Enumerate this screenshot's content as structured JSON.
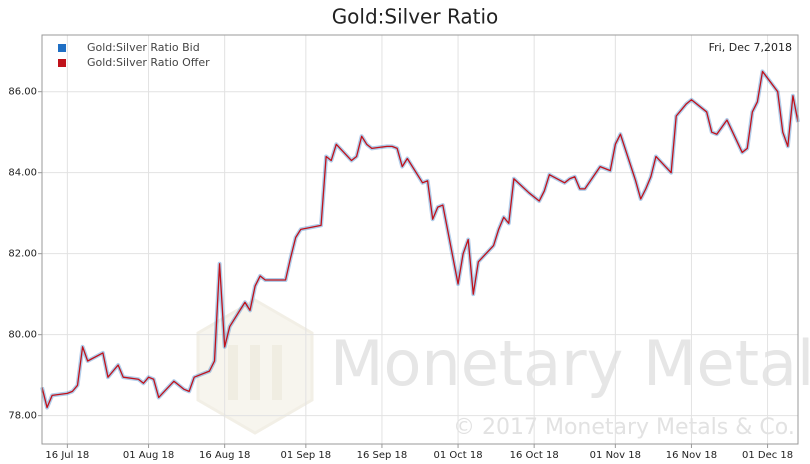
{
  "chart_data": {
    "type": "line",
    "title": "Gold:Silver Ratio",
    "annotation": "Fri, Dec 7,2018",
    "watermark": {
      "brand": "Monetary Metals",
      "copyright": "© 2017 Monetary Metals & Co."
    },
    "legend": "top-left",
    "grid": true,
    "x": [
      "2018-07-11",
      "2018-07-12",
      "2018-07-13",
      "2018-07-16",
      "2018-07-17",
      "2018-07-18",
      "2018-07-19",
      "2018-07-20",
      "2018-07-23",
      "2018-07-24",
      "2018-07-25",
      "2018-07-26",
      "2018-07-27",
      "2018-07-30",
      "2018-07-31",
      "2018-08-01",
      "2018-08-02",
      "2018-08-03",
      "2018-08-06",
      "2018-08-07",
      "2018-08-08",
      "2018-08-09",
      "2018-08-10",
      "2018-08-13",
      "2018-08-14",
      "2018-08-15",
      "2018-08-16",
      "2018-08-17",
      "2018-08-20",
      "2018-08-21",
      "2018-08-22",
      "2018-08-23",
      "2018-08-24",
      "2018-08-27",
      "2018-08-28",
      "2018-08-29",
      "2018-08-30",
      "2018-08-31",
      "2018-09-04",
      "2018-09-05",
      "2018-09-06",
      "2018-09-07",
      "2018-09-10",
      "2018-09-11",
      "2018-09-12",
      "2018-09-13",
      "2018-09-14",
      "2018-09-17",
      "2018-09-18",
      "2018-09-19",
      "2018-09-20",
      "2018-09-21",
      "2018-09-24",
      "2018-09-25",
      "2018-09-26",
      "2018-09-27",
      "2018-09-28",
      "2018-10-01",
      "2018-10-02",
      "2018-10-03",
      "2018-10-04",
      "2018-10-05",
      "2018-10-08",
      "2018-10-09",
      "2018-10-10",
      "2018-10-11",
      "2018-10-12",
      "2018-10-15",
      "2018-10-16",
      "2018-10-17",
      "2018-10-18",
      "2018-10-19",
      "2018-10-22",
      "2018-10-23",
      "2018-10-24",
      "2018-10-25",
      "2018-10-26",
      "2018-10-29",
      "2018-10-30",
      "2018-10-31",
      "2018-11-01",
      "2018-11-02",
      "2018-11-05",
      "2018-11-06",
      "2018-11-07",
      "2018-11-08",
      "2018-11-09",
      "2018-11-12",
      "2018-11-13",
      "2018-11-14",
      "2018-11-15",
      "2018-11-16",
      "2018-11-19",
      "2018-11-20",
      "2018-11-21",
      "2018-11-23",
      "2018-11-26",
      "2018-11-27",
      "2018-11-28",
      "2018-11-29",
      "2018-11-30",
      "2018-12-03",
      "2018-12-04",
      "2018-12-05",
      "2018-12-06",
      "2018-12-07"
    ],
    "series": [
      {
        "name": "Gold:Silver Ratio Bid",
        "color": "#1f6fc4",
        "values": [
          78.7,
          78.2,
          78.5,
          78.55,
          78.6,
          78.75,
          79.7,
          79.35,
          79.55,
          78.95,
          79.1,
          79.25,
          78.95,
          78.9,
          78.8,
          78.95,
          78.9,
          78.45,
          78.85,
          78.75,
          78.65,
          78.6,
          78.95,
          79.1,
          79.35,
          81.75,
          79.7,
          80.2,
          80.8,
          80.6,
          81.2,
          81.45,
          81.35,
          81.35,
          81.35,
          81.9,
          82.4,
          82.6,
          82.7,
          84.4,
          84.3,
          84.7,
          84.3,
          84.4,
          84.9,
          84.7,
          84.6,
          84.65,
          84.65,
          84.6,
          84.15,
          84.35,
          83.75,
          83.8,
          82.85,
          83.15,
          83.2,
          81.25,
          82.0,
          82.35,
          81.0,
          81.8,
          82.2,
          82.6,
          82.9,
          82.75,
          83.85,
          83.5,
          83.4,
          83.3,
          83.55,
          83.95,
          83.75,
          83.85,
          83.9,
          83.6,
          83.6,
          84.15,
          84.1,
          84.05,
          84.7,
          84.95,
          83.8,
          83.35,
          83.6,
          83.9,
          84.4,
          84.0,
          85.4,
          85.55,
          85.7,
          85.8,
          85.5,
          85.0,
          84.95,
          85.3,
          84.5,
          84.6,
          85.5,
          85.75,
          86.5,
          86.0,
          85.0,
          84.65,
          85.9,
          85.25
        ]
      },
      {
        "name": "Gold:Silver Ratio Offer",
        "color": "#c0121b",
        "values": [
          78.7,
          78.2,
          78.5,
          78.55,
          78.6,
          78.75,
          79.7,
          79.35,
          79.55,
          78.95,
          79.1,
          79.25,
          78.95,
          78.9,
          78.8,
          78.95,
          78.9,
          78.45,
          78.85,
          78.75,
          78.65,
          78.6,
          78.95,
          79.1,
          79.35,
          81.75,
          79.7,
          80.2,
          80.8,
          80.6,
          81.2,
          81.45,
          81.35,
          81.35,
          81.35,
          81.9,
          82.4,
          82.6,
          82.7,
          84.4,
          84.3,
          84.7,
          84.3,
          84.4,
          84.9,
          84.7,
          84.6,
          84.65,
          84.65,
          84.6,
          84.15,
          84.35,
          83.75,
          83.8,
          82.85,
          83.15,
          83.2,
          81.25,
          82.0,
          82.35,
          81.0,
          81.8,
          82.2,
          82.6,
          82.9,
          82.75,
          83.85,
          83.5,
          83.4,
          83.3,
          83.55,
          83.95,
          83.75,
          83.85,
          83.9,
          83.6,
          83.6,
          84.15,
          84.1,
          84.05,
          84.7,
          84.95,
          83.8,
          83.35,
          83.6,
          83.9,
          84.4,
          84.0,
          85.4,
          85.55,
          85.7,
          85.8,
          85.5,
          85.0,
          84.95,
          85.3,
          84.5,
          84.6,
          85.5,
          85.75,
          86.5,
          86.0,
          85.0,
          84.65,
          85.9,
          85.25
        ]
      }
    ],
    "xlim": [
      "2018-07-11",
      "2018-12-07"
    ],
    "xticks": [
      {
        "value": "2018-07-16",
        "label": "16 Jul 18"
      },
      {
        "value": "2018-08-01",
        "label": "01 Aug 18"
      },
      {
        "value": "2018-08-16",
        "label": "16 Aug 18"
      },
      {
        "value": "2018-09-01",
        "label": "01 Sep 18"
      },
      {
        "value": "2018-09-16",
        "label": "16 Sep 18"
      },
      {
        "value": "2018-10-01",
        "label": "01 Oct 18"
      },
      {
        "value": "2018-10-16",
        "label": "16 Oct 18"
      },
      {
        "value": "2018-11-01",
        "label": "01 Nov 18"
      },
      {
        "value": "2018-11-16",
        "label": "16 Nov 18"
      },
      {
        "value": "2018-12-01",
        "label": "01 Dec 18"
      }
    ],
    "ylim": [
      77.3,
      87.4
    ],
    "yticks": [
      {
        "value": 78,
        "label": "78.00"
      },
      {
        "value": 80,
        "label": "80.00"
      },
      {
        "value": 82,
        "label": "82.00"
      },
      {
        "value": 84,
        "label": "84.00"
      },
      {
        "value": 86,
        "label": "86.00"
      }
    ]
  }
}
